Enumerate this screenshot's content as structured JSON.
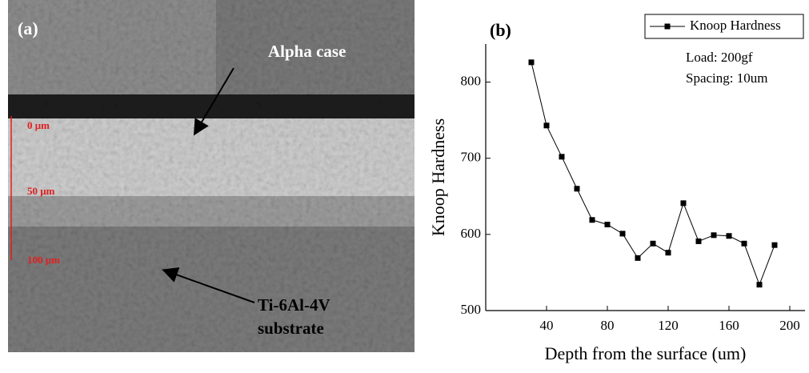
{
  "micrograph": {
    "panel_label": "(a)",
    "alpha_label": "Alpha case",
    "substrate_label_1": "Ti-6Al-4V",
    "substrate_label_2": "substrate",
    "scale_labels": [
      "0 μm",
      "50 μm",
      "100 μm"
    ]
  },
  "chart_data": {
    "type": "line",
    "panel_label": "(b)",
    "x_label": "Depth from the surface (um)",
    "y_label": "Knoop Hardness",
    "annotations": [
      "Load: 200gf",
      "Spacing: 10um"
    ],
    "x": [
      30,
      40,
      50,
      60,
      70,
      80,
      90,
      100,
      110,
      120,
      130,
      140,
      150,
      160,
      170,
      180,
      190
    ],
    "series": [
      {
        "name": "Knoop Hardness",
        "color": "#000000",
        "values": [
          826,
          743,
          702,
          660,
          619,
          613,
          601,
          569,
          588,
          576,
          641,
          591,
          599,
          598,
          588,
          534,
          586
        ]
      }
    ],
    "xlim": [
      0,
      210
    ],
    "xticks": [
      40,
      80,
      120,
      160,
      200
    ],
    "ylim": [
      500,
      850
    ],
    "yticks": [
      500,
      600,
      700,
      800
    ],
    "legend": "upper right",
    "grid": false
  }
}
